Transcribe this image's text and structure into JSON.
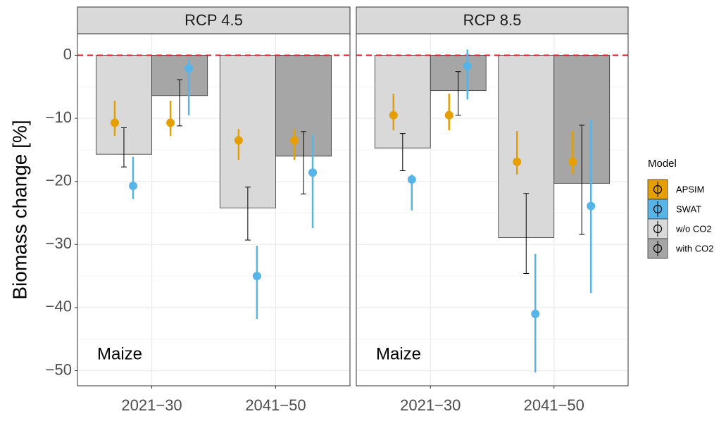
{
  "y_label": "Biomass change [%]",
  "legend_title": "Model",
  "chart_data": [
    {
      "type": "bar",
      "title": "RCP 4.5",
      "annotation": "Maize",
      "categories": [
        "2021−30",
        "2041−50"
      ],
      "ylim": [
        -52.4,
        3.4
      ],
      "yticks": [
        {
          "value": -50,
          "label": "−50"
        },
        {
          "value": -40,
          "label": "−40"
        },
        {
          "value": -30,
          "label": "−30"
        },
        {
          "value": -20,
          "label": "−20"
        },
        {
          "value": -10,
          "label": "−10"
        },
        0
      ],
      "minor_yticks": [
        -45,
        -35,
        -25,
        -15,
        -5
      ],
      "grid": true,
      "reference_line": 0,
      "reference_color": "#e41a1c",
      "series": [
        {
          "name": "w/o CO2",
          "color": "#d9d9d9",
          "values": [
            -15.7,
            -24.2
          ],
          "lower": [
            -17.7,
            -29.3
          ],
          "upper": [
            -11.5,
            -20.9
          ]
        },
        {
          "name": "with CO2",
          "color": "#a6a6a6",
          "values": [
            -6.4,
            -16.0
          ],
          "lower": [
            -11.2,
            -22.0
          ],
          "upper": [
            -3.9,
            -12.1
          ]
        }
      ],
      "points": [
        {
          "name": "APSIM",
          "color": "#e69f00",
          "values": [
            [
              -10.7,
              -10.7
            ],
            [
              -13.5,
              -13.5
            ]
          ],
          "lower": [
            [
              -12.8,
              -12.8
            ],
            [
              -16.6,
              -16.6
            ]
          ],
          "upper": [
            [
              -7.2,
              -7.2
            ],
            [
              -11.7,
              -11.7
            ]
          ]
        },
        {
          "name": "SWAT",
          "color": "#56b4e9",
          "values": [
            [
              -20.7,
              -2.1
            ],
            [
              -35.0,
              -18.6
            ]
          ],
          "lower": [
            [
              -22.8,
              -9.5
            ],
            [
              -41.8,
              -27.4
            ]
          ],
          "upper": [
            [
              -16.1,
              -0.6
            ],
            [
              -30.2,
              -12.6
            ]
          ]
        }
      ]
    },
    {
      "type": "bar",
      "title": "RCP 8.5",
      "annotation": "Maize",
      "categories": [
        "2021−30",
        "2041−50"
      ],
      "ylim": [
        -52.4,
        3.4
      ],
      "yticks": [
        {
          "value": -50,
          "label": "−50"
        },
        {
          "value": -40,
          "label": "−40"
        },
        {
          "value": -30,
          "label": "−30"
        },
        {
          "value": -20,
          "label": "−20"
        },
        {
          "value": -10,
          "label": "−10"
        },
        0
      ],
      "minor_yticks": [
        -45,
        -35,
        -25,
        -15,
        -5
      ],
      "grid": true,
      "reference_line": 0,
      "reference_color": "#e41a1c",
      "series": [
        {
          "name": "w/o CO2",
          "color": "#d9d9d9",
          "values": [
            -14.7,
            -28.9
          ],
          "lower": [
            -18.3,
            -34.6
          ],
          "upper": [
            -12.4,
            -21.9
          ]
        },
        {
          "name": "with CO2",
          "color": "#a6a6a6",
          "values": [
            -5.6,
            -20.3
          ],
          "lower": [
            -9.5,
            -28.4
          ],
          "upper": [
            -2.6,
            -11.1
          ]
        }
      ],
      "points": [
        {
          "name": "APSIM",
          "color": "#e69f00",
          "values": [
            [
              -9.5,
              -9.5
            ],
            [
              -16.9,
              -16.9
            ]
          ],
          "lower": [
            [
              -11.9,
              -11.9
            ],
            [
              -18.9,
              -18.9
            ]
          ],
          "upper": [
            [
              -6.1,
              -6.1
            ],
            [
              -12.0,
              -12.0
            ]
          ]
        },
        {
          "name": "SWAT",
          "color": "#56b4e9",
          "values": [
            [
              -19.7,
              -1.7
            ],
            [
              -41.0,
              -23.9
            ]
          ],
          "lower": [
            [
              -24.6,
              -7.0
            ],
            [
              -50.3,
              -37.7
            ]
          ],
          "upper": [
            [
              -18.9,
              0.9
            ],
            [
              -31.5,
              -10.2
            ]
          ]
        }
      ]
    }
  ]
}
